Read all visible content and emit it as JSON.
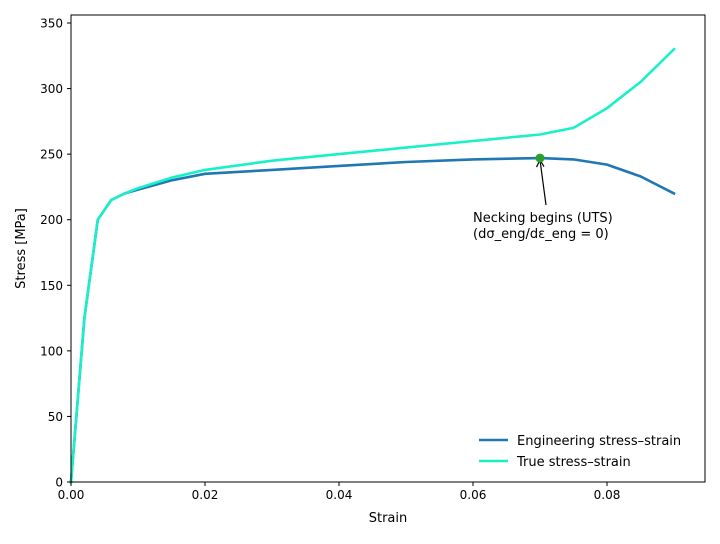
{
  "chart_data": {
    "type": "line",
    "title": "",
    "xlabel": "Strain",
    "ylabel": "Stress [MPa]",
    "xlim": [
      0.0,
      0.0945
    ],
    "ylim": [
      0,
      356
    ],
    "grid": false,
    "legend_position": "lower right",
    "x_ticks": [
      0.0,
      0.02,
      0.04,
      0.06,
      0.08
    ],
    "x_tick_labels": [
      "0.00",
      "0.02",
      "0.04",
      "0.06",
      "0.08"
    ],
    "y_ticks": [
      0,
      50,
      100,
      150,
      200,
      250,
      300,
      350
    ],
    "y_tick_labels": [
      "0",
      "50",
      "100",
      "150",
      "200",
      "250",
      "300",
      "350"
    ],
    "x": [
      0.0,
      0.002,
      0.004,
      0.006,
      0.008,
      0.01,
      0.015,
      0.02,
      0.03,
      0.04,
      0.05,
      0.06,
      0.07,
      0.075,
      0.08,
      0.085,
      0.09
    ],
    "series": [
      {
        "name": "Engineering stress–strain",
        "color": "#1f77b4",
        "values": [
          0,
          125,
          200,
          215,
          220,
          223,
          230,
          235,
          238,
          241,
          244,
          246,
          247,
          246,
          242,
          233,
          220
        ]
      },
      {
        "name": "True stress–strain",
        "color": "#1af0c8",
        "values": [
          0,
          125,
          200,
          215,
          220,
          224,
          232,
          238,
          245,
          250,
          255,
          260,
          265,
          270,
          285,
          305,
          330
        ]
      }
    ],
    "annotations": [
      {
        "text_line1": "Necking begins (UTS)",
        "text_line2": "(dσ_eng/dε_eng = 0)",
        "point": [
          0.07,
          247
        ],
        "text_position": [
          0.06,
          193
        ],
        "marker_color": "#2ca02c",
        "arrow": true
      }
    ]
  }
}
